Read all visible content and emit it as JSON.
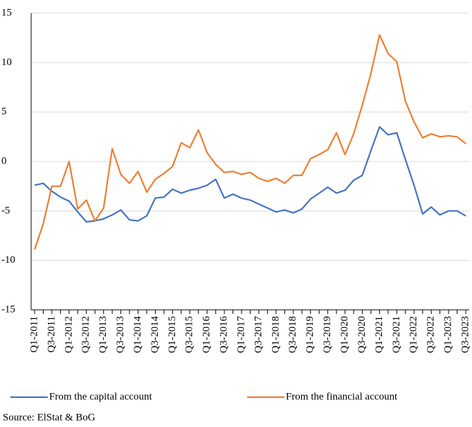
{
  "chart_data": {
    "type": "line",
    "categories": [
      "Q1-2011",
      null,
      "Q3-2011",
      null,
      "Q1-2012",
      null,
      "Q3-2012",
      null,
      "Q1-2013",
      null,
      "Q3-2013",
      null,
      "Q1-2014",
      null,
      "Q3-2014",
      null,
      "Q1-2015",
      null,
      "Q3-2015",
      null,
      "Q1-2016",
      null,
      "Q3-2016",
      null,
      "Q1-2017",
      null,
      "Q3-2017",
      null,
      "Q1-2018",
      null,
      "Q3-2018",
      null,
      "Q1-2019",
      null,
      "Q3-2019",
      null,
      "Q1-2020",
      null,
      "Q3-2020",
      null,
      "Q1-2021",
      null,
      "Q3-2021",
      null,
      "Q1-2022",
      null,
      "Q3-2022",
      null,
      "Q1-2023",
      null,
      "Q3-2023"
    ],
    "series": [
      {
        "name": "From the capital account",
        "color": "#4472c4",
        "values": [
          -2.4,
          -2.2,
          -3.0,
          -3.6,
          -4.0,
          -5.1,
          -6.1,
          -6.0,
          -5.8,
          -5.4,
          -4.9,
          -5.9,
          -6.0,
          -5.5,
          -3.7,
          -3.6,
          -2.8,
          -3.2,
          -2.9,
          -2.7,
          -2.4,
          -1.8,
          -3.7,
          -3.3,
          -3.7,
          -3.9,
          -4.3,
          -4.7,
          -5.1,
          -4.9,
          -5.2,
          -4.8,
          -3.8,
          -3.2,
          -2.6,
          -3.2,
          -2.9,
          -1.9,
          -1.4,
          1.1,
          3.5,
          2.7,
          2.9,
          0.2,
          -2.4,
          -5.3,
          -4.6,
          -5.4,
          -5.0,
          -5.0,
          -5.5
        ]
      },
      {
        "name": "From the financial account",
        "color": "#ed7d31",
        "values": [
          -8.9,
          -6.3,
          -2.5,
          -2.5,
          0.0,
          -4.8,
          -3.9,
          -6.0,
          -4.7,
          1.3,
          -1.3,
          -2.2,
          -1.0,
          -3.1,
          -1.8,
          -1.2,
          -0.5,
          1.9,
          1.4,
          3.2,
          0.9,
          -0.3,
          -1.1,
          -1.0,
          -1.3,
          -1.1,
          -1.7,
          -2.0,
          -1.7,
          -2.2,
          -1.4,
          -1.4,
          0.3,
          0.7,
          1.2,
          2.9,
          0.7,
          2.8,
          5.7,
          8.9,
          12.8,
          10.9,
          10.1,
          6.1,
          4.0,
          2.4,
          2.8,
          2.5,
          2.6,
          2.5,
          1.8
        ]
      }
    ],
    "ylim": [
      -15,
      15
    ],
    "yticks": [
      -15,
      -10,
      -5,
      0,
      5,
      10,
      15
    ],
    "grid": true,
    "source": "Source: ElStat & BoG"
  }
}
